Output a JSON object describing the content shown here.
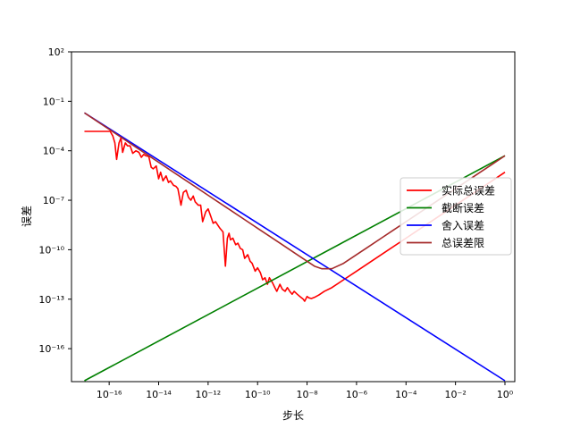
{
  "chart_data": {
    "type": "line",
    "xlabel": "步长",
    "ylabel": "误差",
    "x_scale": "log",
    "y_scale": "log",
    "xlim": [
      3e-18,
      2.5
    ],
    "ylim": [
      1e-18,
      100
    ],
    "x_ticks": [
      {
        "value": 1e-16,
        "label": "10⁻¹⁶"
      },
      {
        "value": 1e-14,
        "label": "10⁻¹⁴"
      },
      {
        "value": 1e-12,
        "label": "10⁻¹²"
      },
      {
        "value": 1e-10,
        "label": "10⁻¹⁰"
      },
      {
        "value": 1e-08,
        "label": "10⁻⁸"
      },
      {
        "value": 1e-06,
        "label": "10⁻⁶"
      },
      {
        "value": 0.0001,
        "label": "10⁻⁴"
      },
      {
        "value": 0.01,
        "label": "10⁻²"
      },
      {
        "value": 1,
        "label": "10⁰"
      }
    ],
    "y_ticks": [
      {
        "value": 1e-16,
        "label": "10⁻¹⁶"
      },
      {
        "value": 1e-13,
        "label": "10⁻¹³"
      },
      {
        "value": 1e-10,
        "label": "10⁻¹⁰"
      },
      {
        "value": 1e-07,
        "label": "10⁻⁷"
      },
      {
        "value": 0.0001,
        "label": "10⁻⁴"
      },
      {
        "value": 0.1,
        "label": "10⁻¹"
      },
      {
        "value": 100,
        "label": "10²"
      }
    ],
    "grid": false,
    "legend_position": "center-right",
    "series": [
      {
        "name": "实际总误差",
        "color": "#ff0000",
        "x": [
          1e-17,
          2e-17,
          5e-17,
          8e-17,
          1.1e-16,
          1.4e-16,
          1.7e-16,
          2e-16,
          2.5e-16,
          3e-16,
          3.5e-16,
          4.5e-16,
          5.5e-16,
          7e-16,
          9e-16,
          1.2e-15,
          1.6e-15,
          2e-15,
          2.5e-15,
          3e-15,
          4e-15,
          5e-15,
          6e-15,
          8e-15,
          1e-14,
          1.2e-14,
          1.5e-14,
          2e-14,
          2.5e-14,
          3e-14,
          4e-14,
          5e-14,
          6e-14,
          8e-14,
          1e-13,
          1.3e-13,
          1.6e-13,
          2e-13,
          2.5e-13,
          3e-13,
          4e-13,
          5e-13,
          6e-13,
          8e-13,
          1e-12,
          1.3e-12,
          1.6e-12,
          2e-12,
          2.5e-12,
          3e-12,
          4e-12,
          5e-12,
          6e-12,
          7e-12,
          8e-12,
          1e-11,
          1.3e-11,
          1.6e-11,
          2e-11,
          2.5e-11,
          3e-11,
          4e-11,
          5e-11,
          6e-11,
          8e-11,
          1e-10,
          1.3e-10,
          1.6e-10,
          2e-10,
          2.5e-10,
          3e-10,
          4e-10,
          5e-10,
          6e-10,
          8e-10,
          1e-09,
          1.3e-09,
          1.6e-09,
          2e-09,
          2.5e-09,
          3e-09,
          4e-09,
          5e-09,
          6e-09,
          7e-09,
          8e-09,
          1e-08,
          1.2e-08,
          1.5e-08,
          2e-08,
          3e-08,
          5e-08,
          1e-07,
          1e-06,
          1e-05,
          0.0001,
          0.001,
          0.01,
          0.1,
          1
        ],
        "y": [
          0.0015,
          0.0015,
          0.0015,
          0.0015,
          0.0015,
          0.0008,
          0.0003,
          3e-05,
          0.0003,
          0.0006,
          8e-05,
          0.0003,
          0.0002,
          0.0002,
          7e-05,
          0.0001,
          8e-05,
          4e-05,
          6e-05,
          5e-05,
          4.5e-05,
          1e-05,
          8e-06,
          1.2e-05,
          2e-06,
          5e-06,
          1.5e-06,
          3e-06,
          1.2e-06,
          1.5e-06,
          8e-07,
          7e-07,
          5e-07,
          5e-08,
          3e-07,
          4e-07,
          1.5e-07,
          1e-07,
          1.8e-07,
          8e-08,
          5e-08,
          5e-08,
          5e-09,
          2e-08,
          3e-08,
          1e-08,
          4e-09,
          5e-09,
          3e-09,
          2e-09,
          1.2e-09,
          1e-11,
          5e-10,
          1e-09,
          4e-10,
          5e-10,
          2e-10,
          2.5e-10,
          1.2e-10,
          1e-10,
          3e-11,
          5e-11,
          2e-11,
          1.5e-11,
          5e-12,
          8e-12,
          4e-12,
          1.5e-12,
          2e-12,
          8e-13,
          2e-12,
          1e-12,
          5e-13,
          3e-13,
          8e-13,
          4e-13,
          3e-13,
          5e-13,
          3e-13,
          2e-13,
          3e-13,
          2e-13,
          1.5e-13,
          1.2e-13,
          1e-13,
          7.5e-14,
          1.45e-13,
          1.2e-13,
          1.1e-13,
          1.3e-13,
          1.8e-13,
          3e-13,
          5e-13,
          5e-12,
          5e-11,
          5e-10,
          5e-09,
          5e-08,
          5e-07,
          5e-06
        ]
      },
      {
        "name": "截断误差",
        "color": "#008000",
        "x": [
          1e-17,
          1
        ],
        "y": [
          5e-22,
          5e-05
        ]
      },
      {
        "name": "舍入误差",
        "color": "#0000ff",
        "x": [
          1e-17,
          1
        ],
        "y": [
          0.02,
          2e-19
        ]
      },
      {
        "name": "总误差限",
        "color": "#a52a2a",
        "x": [
          1e-17,
          3e-17,
          1e-16,
          3e-16,
          1e-15,
          3e-15,
          1e-14,
          3e-14,
          1e-13,
          3e-13,
          1e-12,
          3e-12,
          1e-11,
          3e-11,
          1e-10,
          3e-10,
          1e-09,
          3e-09,
          1e-08,
          2e-08,
          4e-08,
          1e-07,
          3e-07,
          1e-06,
          3e-06,
          1e-05,
          3e-05,
          0.0001,
          0.0003,
          0.001,
          0.003,
          0.01,
          0.03,
          0.1,
          0.3,
          1
        ],
        "y": [
          0.02,
          0.006667,
          0.002,
          0.0006667,
          0.0002,
          6.667e-05,
          2e-05,
          6.667e-06,
          2e-06,
          6.667e-07,
          2e-07,
          6.667e-08,
          2e-08,
          6.667e-09,
          2e-09,
          6.667e-10,
          2e-10,
          6.667e-11,
          2e-11,
          1e-11,
          7e-12,
          7e-12,
          1.5e-11,
          5e-11,
          1.5e-10,
          5e-10,
          1.5e-09,
          5e-09,
          1.5e-08,
          5e-08,
          1.5e-07,
          5e-07,
          1.5e-06,
          5e-06,
          1.5e-05,
          5e-05
        ]
      }
    ]
  }
}
